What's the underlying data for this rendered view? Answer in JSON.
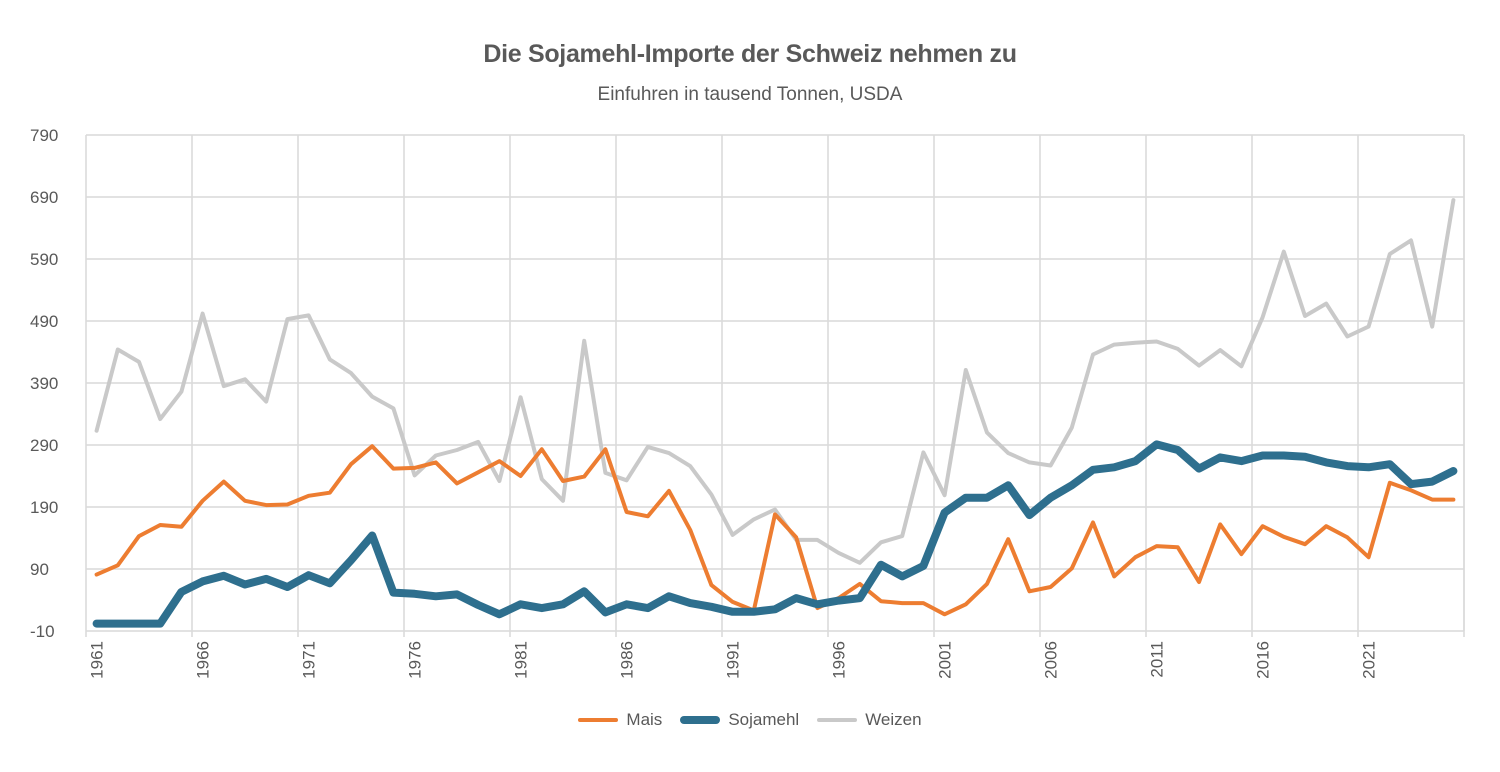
{
  "chart_data": {
    "type": "line",
    "title": "Die Sojamehl-Importe der Schweiz nehmen zu",
    "subtitle": "Einfuhren in tausend Tonnen, USDA",
    "xlabel": "",
    "ylabel": "",
    "ylim": [
      -10,
      790
    ],
    "yticks": [
      -10,
      90,
      190,
      290,
      390,
      490,
      590,
      690,
      790
    ],
    "x": [
      1961,
      1962,
      1963,
      1964,
      1965,
      1966,
      1967,
      1968,
      1969,
      1970,
      1971,
      1972,
      1973,
      1974,
      1975,
      1976,
      1977,
      1978,
      1979,
      1980,
      1981,
      1982,
      1983,
      1984,
      1985,
      1986,
      1987,
      1988,
      1989,
      1990,
      1991,
      1992,
      1993,
      1994,
      1995,
      1996,
      1997,
      1998,
      1999,
      2000,
      2001,
      2002,
      2003,
      2004,
      2005,
      2006,
      2007,
      2008,
      2009,
      2010,
      2011,
      2012,
      2013,
      2014,
      2015,
      2016,
      2017,
      2018,
      2019,
      2020,
      2021,
      2022,
      2023,
      2024,
      2025
    ],
    "xtick_labels": [
      "1961",
      "1966",
      "1971",
      "1976",
      "1981",
      "1986",
      "1991",
      "1996",
      "2001",
      "2006",
      "2011",
      "2016",
      "2021"
    ],
    "grid": true,
    "legend_position": "bottom",
    "series": [
      {
        "name": "Mais",
        "color": "#ED7D31",
        "values": [
          81,
          96,
          143,
          161,
          158,
          200,
          231,
          200,
          193,
          194,
          208,
          213,
          259,
          288,
          252,
          253,
          262,
          228,
          246,
          264,
          240,
          283,
          232,
          239,
          283,
          182,
          175,
          216,
          153,
          64,
          37,
          23,
          178,
          141,
          27,
          43,
          66,
          38,
          35,
          35,
          17,
          33,
          66,
          138,
          54,
          61,
          91,
          165,
          78,
          109,
          127,
          125,
          69,
          162,
          114,
          159,
          142,
          130,
          159,
          141,
          109,
          229,
          217,
          202,
          202
        ]
      },
      {
        "name": "Sojamehl",
        "color": "#2E6F8E",
        "values": [
          2,
          2,
          2,
          2,
          53,
          70,
          79,
          65,
          74,
          61,
          80,
          67,
          104,
          144,
          52,
          50,
          46,
          49,
          32,
          17,
          33,
          27,
          33,
          54,
          20,
          33,
          27,
          46,
          35,
          29,
          21,
          21,
          25,
          43,
          33,
          39,
          43,
          97,
          78,
          95,
          181,
          205,
          205,
          225,
          177,
          205,
          225,
          250,
          254,
          264,
          291,
          282,
          252,
          270,
          264,
          273,
          273,
          271,
          262,
          256,
          254,
          259,
          227,
          231,
          248
        ]
      },
      {
        "name": "Weizen",
        "color": "#C9C9C9",
        "values": [
          313,
          444,
          424,
          332,
          376,
          502,
          385,
          396,
          360,
          493,
          499,
          428,
          406,
          368,
          349,
          241,
          273,
          282,
          295,
          232,
          367,
          235,
          200,
          458,
          245,
          233,
          287,
          277,
          256,
          210,
          145,
          170,
          186,
          137,
          137,
          116,
          100,
          133,
          143,
          278,
          209,
          411,
          310,
          277,
          262,
          257,
          318,
          436,
          452,
          455,
          457,
          445,
          418,
          443,
          417,
          496,
          602,
          498,
          518,
          465,
          481,
          598,
          620,
          481,
          685
        ]
      }
    ]
  }
}
